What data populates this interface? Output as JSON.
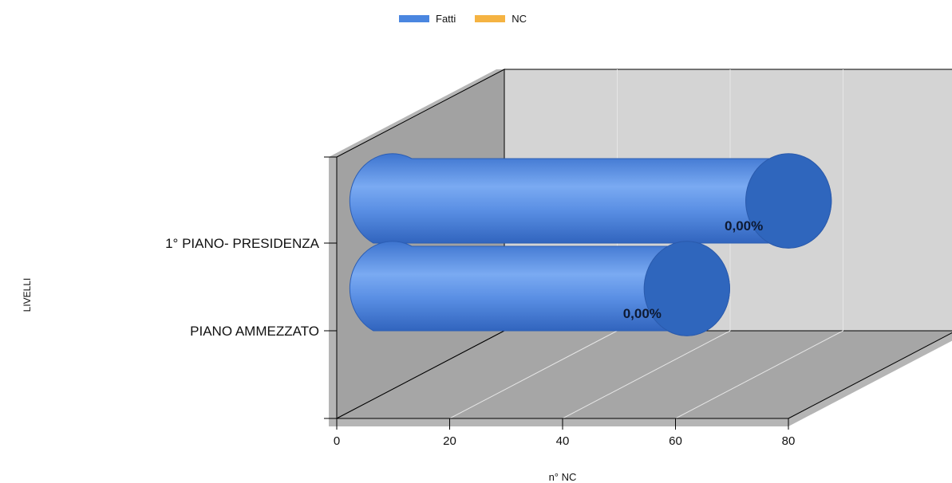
{
  "chart_data": {
    "type": "bar",
    "orientation": "horizontal",
    "style": "3d-cylinder",
    "categories": [
      "1° PIANO- PRESIDENZA",
      "PIANO AMMEZZATO"
    ],
    "series": [
      {
        "name": "Fatti",
        "color": "#4a86e0",
        "values": [
          82,
          64
        ],
        "labels": [
          "0,00%",
          "0,00%"
        ]
      },
      {
        "name": "NC",
        "color": "#f5b342",
        "values": [
          0,
          0
        ]
      }
    ],
    "xlabel": "n° NC",
    "ylabel": "LIVELLI",
    "xlim": [
      0,
      80
    ],
    "xticks": [
      "0",
      "20",
      "40",
      "60",
      "80"
    ],
    "grid": true,
    "legend": "top-center"
  }
}
